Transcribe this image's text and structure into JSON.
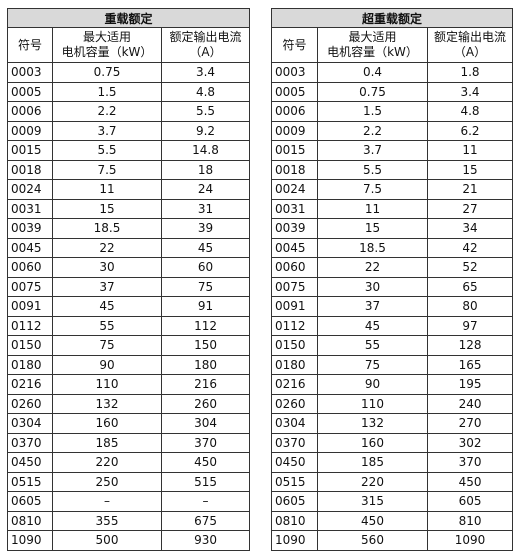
{
  "tables": [
    {
      "title": "重载额定",
      "header": [
        "符号",
        "最大适用\n电机容量（kW）",
        "额定输出电流\n（A）"
      ],
      "rows": [
        [
          "0003",
          "0.75",
          "3.4"
        ],
        [
          "0005",
          "1.5",
          "4.8"
        ],
        [
          "0006",
          "2.2",
          "5.5"
        ],
        [
          "0009",
          "3.7",
          "9.2"
        ],
        [
          "0015",
          "5.5",
          "14.8"
        ],
        [
          "0018",
          "7.5",
          "18"
        ],
        [
          "0024",
          "11",
          "24"
        ],
        [
          "0031",
          "15",
          "31"
        ],
        [
          "0039",
          "18.5",
          "39"
        ],
        [
          "0045",
          "22",
          "45"
        ],
        [
          "0060",
          "30",
          "60"
        ],
        [
          "0075",
          "37",
          "75"
        ],
        [
          "0091",
          "45",
          "91"
        ],
        [
          "0112",
          "55",
          "112"
        ],
        [
          "0150",
          "75",
          "150"
        ],
        [
          "0180",
          "90",
          "180"
        ],
        [
          "0216",
          "110",
          "216"
        ],
        [
          "0260",
          "132",
          "260"
        ],
        [
          "0304",
          "160",
          "304"
        ],
        [
          "0370",
          "185",
          "370"
        ],
        [
          "0450",
          "220",
          "450"
        ],
        [
          "0515",
          "250",
          "515"
        ],
        [
          "0605",
          "–",
          "–"
        ],
        [
          "0810",
          "355",
          "675"
        ],
        [
          "1090",
          "500",
          "930"
        ]
      ]
    },
    {
      "title": "超重载额定",
      "header": [
        "符号",
        "最大适用\n电机容量（kW）",
        "额定输出电流\n（A）"
      ],
      "rows": [
        [
          "0003",
          "0.4",
          "1.8"
        ],
        [
          "0005",
          "0.75",
          "3.4"
        ],
        [
          "0006",
          "1.5",
          "4.8"
        ],
        [
          "0009",
          "2.2",
          "6.2"
        ],
        [
          "0015",
          "3.7",
          "11"
        ],
        [
          "0018",
          "5.5",
          "15"
        ],
        [
          "0024",
          "7.5",
          "21"
        ],
        [
          "0031",
          "11",
          "27"
        ],
        [
          "0039",
          "15",
          "34"
        ],
        [
          "0045",
          "18.5",
          "42"
        ],
        [
          "0060",
          "22",
          "52"
        ],
        [
          "0075",
          "30",
          "65"
        ],
        [
          "0091",
          "37",
          "80"
        ],
        [
          "0112",
          "45",
          "97"
        ],
        [
          "0150",
          "55",
          "128"
        ],
        [
          "0180",
          "75",
          "165"
        ],
        [
          "0216",
          "90",
          "195"
        ],
        [
          "0260",
          "110",
          "240"
        ],
        [
          "0304",
          "132",
          "270"
        ],
        [
          "0370",
          "160",
          "302"
        ],
        [
          "0450",
          "185",
          "370"
        ],
        [
          "0515",
          "220",
          "450"
        ],
        [
          "0605",
          "315",
          "605"
        ],
        [
          "0810",
          "450",
          "810"
        ],
        [
          "1090",
          "560",
          "1090"
        ]
      ]
    }
  ]
}
